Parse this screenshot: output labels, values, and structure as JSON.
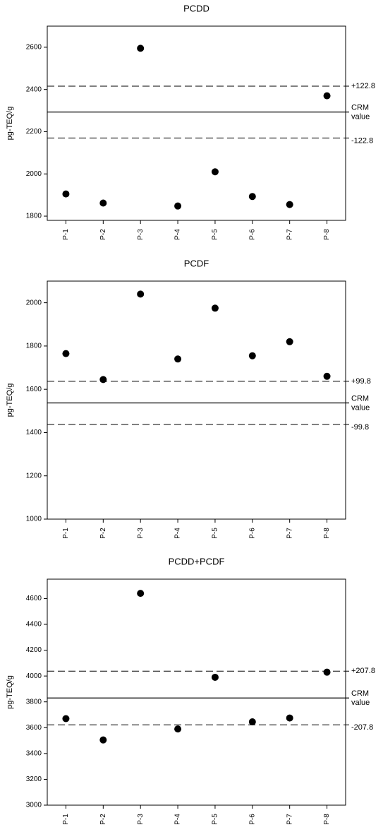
{
  "chart_data": [
    {
      "type": "scatter",
      "title": "PCDD",
      "y_label": "pg-TEQ/g",
      "categories": [
        "P-1",
        "P-2",
        "P-3",
        "P-4",
        "P-5",
        "P-6",
        "P-7",
        "P-8"
      ],
      "values": [
        1905,
        1862,
        2595,
        1848,
        2010,
        1893,
        1855,
        2370
      ],
      "color": "#000000",
      "ylim": [
        1780,
        2700
      ],
      "yticks": [
        1800,
        2000,
        2200,
        2400,
        2600
      ],
      "crm_value": 2293,
      "crm_label": [
        "CRM",
        "value"
      ],
      "limits": [
        {
          "value": 2415.8,
          "label": "+122.8"
        },
        {
          "value": 2170.2,
          "label": "-122.8"
        }
      ]
    },
    {
      "type": "scatter",
      "title": "PCDF",
      "y_label": "pg-TEQ/g",
      "categories": [
        "P-1",
        "P-2",
        "P-3",
        "P-4",
        "P-5",
        "P-6",
        "P-7",
        "P-8"
      ],
      "values": [
        1765,
        1645,
        2040,
        1740,
        1975,
        1755,
        1820,
        1660
      ],
      "color": "#000000",
      "ylim": [
        1000,
        2100
      ],
      "yticks": [
        1000,
        1200,
        1400,
        1600,
        1800,
        2000
      ],
      "crm_value": 1537,
      "crm_label": [
        "CRM",
        "value"
      ],
      "limits": [
        {
          "value": 1636.8,
          "label": "+99.8"
        },
        {
          "value": 1437.2,
          "label": "-99.8"
        }
      ]
    },
    {
      "type": "scatter",
      "title": "PCDD+PCDF",
      "y_label": "pg-TEQ/g",
      "categories": [
        "P-1",
        "P-2",
        "P-3",
        "P-4",
        "P-5",
        "P-6",
        "P-7",
        "P-8"
      ],
      "values": [
        3670,
        3505,
        4640,
        3590,
        3990,
        3645,
        3675,
        4030
      ],
      "color": "#000000",
      "ylim": [
        3000,
        4750
      ],
      "yticks": [
        3000,
        3200,
        3400,
        3600,
        3800,
        4000,
        4200,
        4400,
        4600
      ],
      "crm_value": 3830,
      "crm_label": [
        "CRM",
        "value"
      ],
      "limits": [
        {
          "value": 4037.8,
          "label": "+207.8"
        },
        {
          "value": 3622.2,
          "label": "-207.8"
        }
      ]
    }
  ]
}
